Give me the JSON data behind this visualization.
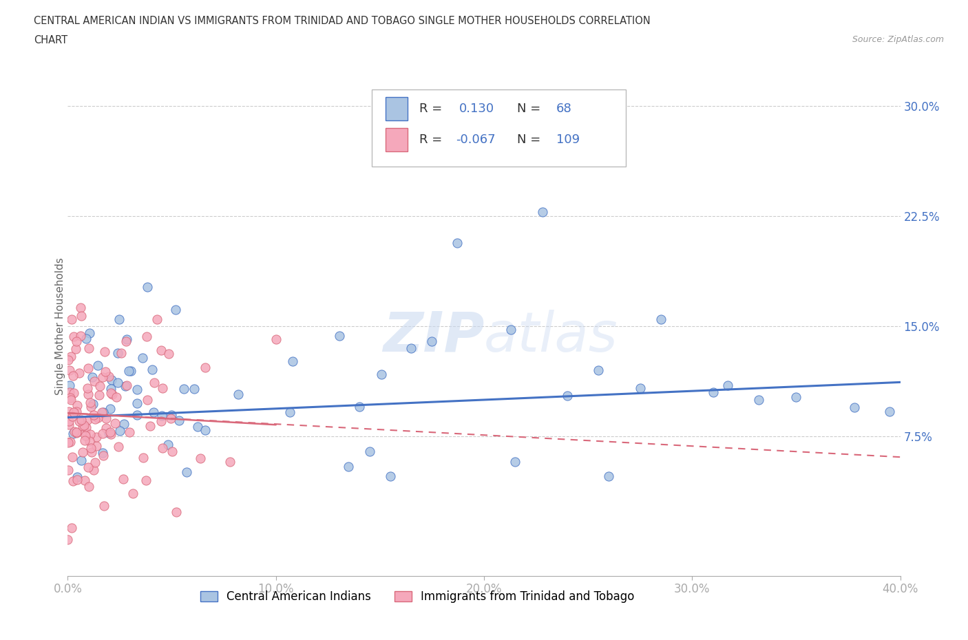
{
  "title_line1": "CENTRAL AMERICAN INDIAN VS IMMIGRANTS FROM TRINIDAD AND TOBAGO SINGLE MOTHER HOUSEHOLDS CORRELATION",
  "title_line2": "CHART",
  "source": "Source: ZipAtlas.com",
  "ylabel": "Single Mother Households",
  "xlim": [
    0.0,
    0.4
  ],
  "ylim": [
    -0.02,
    0.32
  ],
  "xticks": [
    0.0,
    0.1,
    0.2,
    0.3,
    0.4
  ],
  "xtick_labels": [
    "0.0%",
    "10.0%",
    "20.0%",
    "30.0%",
    "40.0%"
  ],
  "ytick_labels": [
    "7.5%",
    "15.0%",
    "22.5%",
    "30.0%"
  ],
  "yticks": [
    0.075,
    0.15,
    0.225,
    0.3
  ],
  "grid_color": "#cccccc",
  "background_color": "#ffffff",
  "color_blue": "#aac4e2",
  "color_pink": "#f5a8bb",
  "line_color_blue": "#4472c4",
  "line_color_pink": "#d9687a",
  "tick_color": "#4472c4",
  "watermark": "ZIPatlas",
  "label_blue": "Central American Indians",
  "label_pink": "Immigrants from Trinidad and Tobago",
  "R_blue": 0.13,
  "N_blue": 68,
  "R_pink": -0.067,
  "N_pink": 109,
  "legend_R1_val": "0.130",
  "legend_N1_val": "68",
  "legend_R2_val": "-0.067",
  "legend_N2_val": "109"
}
